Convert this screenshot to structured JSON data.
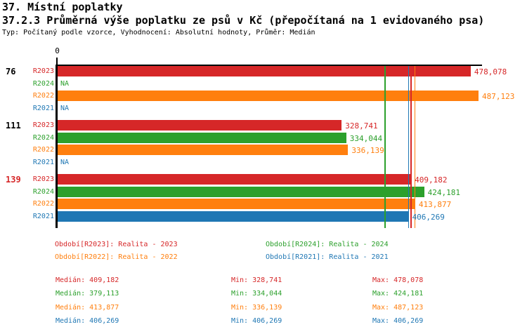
{
  "header": {
    "title": "37. Místní poplatky",
    "subtitle": "37.2.3 Průměrná výše poplatku ze psů v Kč (přepočítaná na 1 evidovaného psa)",
    "meta": "Typ: Počítaný podle vzorce, Vyhodnocení: Absolutní hodnoty, Průměr: Medián"
  },
  "colors": {
    "R2023": "#d62728",
    "R2024": "#2ca02c",
    "R2022": "#ff7f0e",
    "R2021": "#1f77b4",
    "axis": "#000000",
    "group_label_default": "#000000",
    "group_label_highlight": "#d62728"
  },
  "chart_data": {
    "type": "bar",
    "orientation": "horizontal",
    "zero_label": "0",
    "value_axis": {
      "min": 0,
      "grid": false
    },
    "series": [
      "R2023",
      "R2024",
      "R2022",
      "R2021"
    ],
    "groups": [
      {
        "label": "76",
        "highlighted": false,
        "bars": [
          {
            "series": "R2023",
            "value": 478078,
            "display": "478,078"
          },
          {
            "series": "R2024",
            "value": null,
            "display": "NA"
          },
          {
            "series": "R2022",
            "value": 487123,
            "display": "487,123"
          },
          {
            "series": "R2021",
            "value": null,
            "display": "NA"
          }
        ]
      },
      {
        "label": "111",
        "highlighted": false,
        "bars": [
          {
            "series": "R2023",
            "value": 328741,
            "display": "328,741"
          },
          {
            "series": "R2024",
            "value": 334044,
            "display": "334,044"
          },
          {
            "series": "R2022",
            "value": 336139,
            "display": "336,139"
          },
          {
            "series": "R2021",
            "value": null,
            "display": "NA"
          }
        ]
      },
      {
        "label": "139",
        "highlighted": true,
        "bars": [
          {
            "series": "R2023",
            "value": 409182,
            "display": "409,182"
          },
          {
            "series": "R2024",
            "value": 424181,
            "display": "424,181"
          },
          {
            "series": "R2022",
            "value": 413877,
            "display": "413,877"
          },
          {
            "series": "R2021",
            "value": 406269,
            "display": "406,269"
          }
        ]
      }
    ],
    "median_lines": [
      {
        "series": "R2023",
        "value": 409182
      },
      {
        "series": "R2024",
        "value": 379113
      },
      {
        "series": "R2022",
        "value": 413877
      },
      {
        "series": "R2021",
        "value": 406269
      }
    ]
  },
  "legend": {
    "items": [
      {
        "series": "R2023",
        "label": "Období[R2023]: Realita - 2023",
        "col": 0,
        "row": 0
      },
      {
        "series": "R2024",
        "label": "Období[R2024]: Realita - 2024",
        "col": 1,
        "row": 0
      },
      {
        "series": "R2022",
        "label": "Období[R2022]: Realita - 2022",
        "col": 0,
        "row": 1
      },
      {
        "series": "R2021",
        "label": "Období[R2021]: Realita - 2021",
        "col": 1,
        "row": 1
      }
    ]
  },
  "stats": {
    "rows": [
      {
        "series": "R2023",
        "median": "Medián: 409,182",
        "min": "Min: 328,741",
        "max": "Max: 478,078"
      },
      {
        "series": "R2024",
        "median": "Medián: 379,113",
        "min": "Min: 334,044",
        "max": "Max: 424,181"
      },
      {
        "series": "R2022",
        "median": "Medián: 413,877",
        "min": "Min: 336,139",
        "max": "Max: 487,123"
      },
      {
        "series": "R2021",
        "median": "Medián: 406,269",
        "min": "Min: 406,269",
        "max": "Max: 406,269"
      }
    ]
  }
}
